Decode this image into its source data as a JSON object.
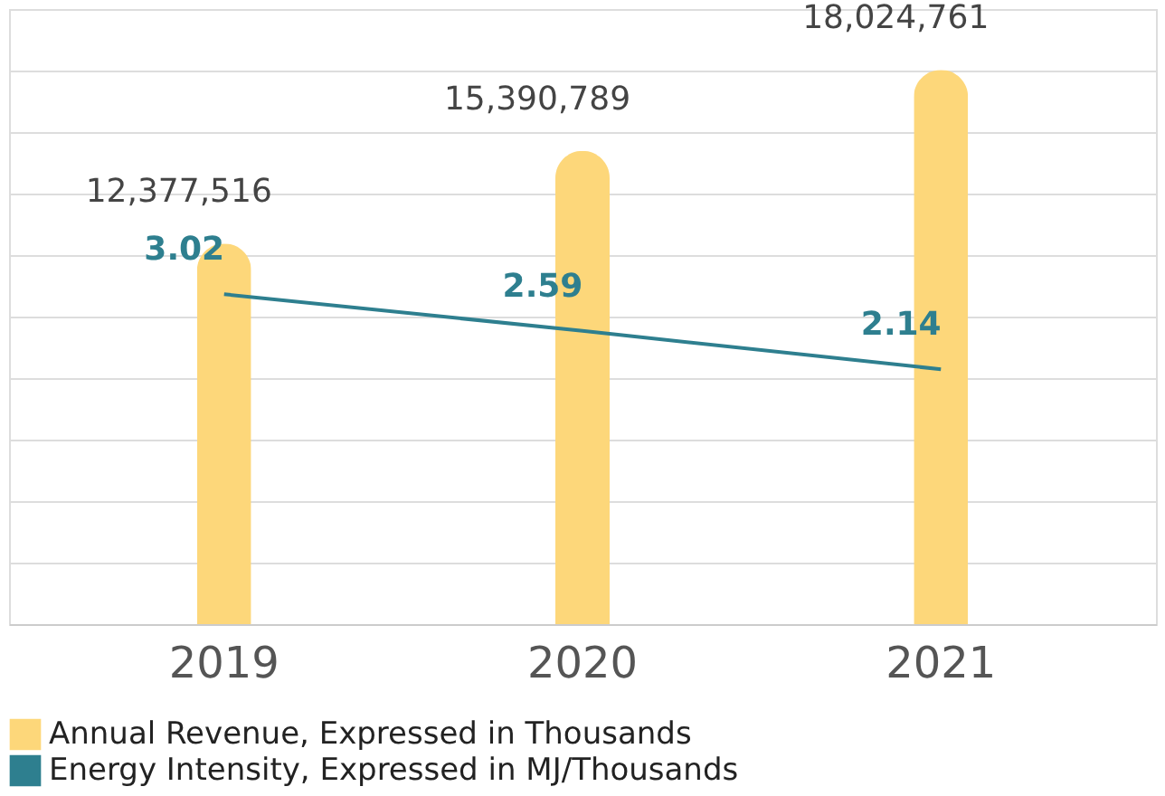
{
  "chart_data": {
    "type": "bar",
    "categories": [
      "2019",
      "2020",
      "2021"
    ],
    "series": [
      {
        "name": "Annual Revenue, Expressed in Thousands",
        "color": "#fdd77a",
        "values": [
          12377516,
          15390789,
          18024761
        ],
        "value_labels": [
          "12,377,516",
          "15,390,789",
          "18,024,761"
        ]
      },
      {
        "name": "Energy Intensity, Expressed in MJ/Thousands",
        "type": "line",
        "axis": "y2",
        "color": "#2e7f8f",
        "values": [
          3.02,
          2.59,
          2.14
        ]
      }
    ],
    "tick_labels": "x",
    "grid": "y",
    "data_labels": true,
    "legend": "bottom",
    "line_style": "solid"
  }
}
